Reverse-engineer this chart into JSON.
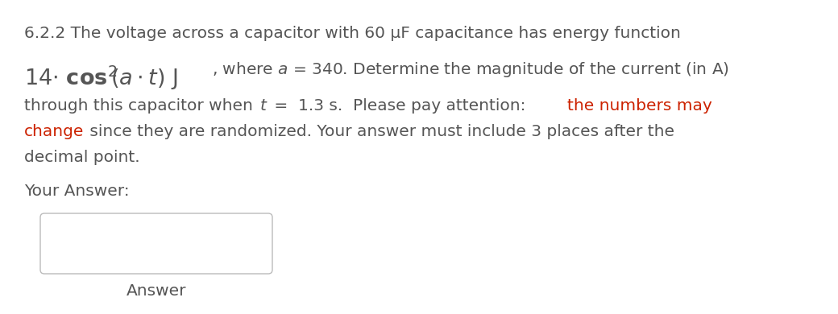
{
  "bg_color": "#ffffff",
  "text_color": "#555555",
  "red_color": "#cc2200",
  "line1": "6.2.2 The voltage across a capacitor with 60 μF capacitance has energy function",
  "line2_rest": ", where α = 340. Determine the magnitude of the current (in A)",
  "line3a": "through this capacitor when ",
  "line3b": "t",
  "line3c": " =  1.3 s.  Please pay attention: ",
  "line3d": "the numbers may",
  "line4a": "change",
  "line4b": " since they are randomized. Your answer must include 3 places after the",
  "line5": "decimal point.",
  "your_answer": "Your Answer:",
  "answer_label": "Answer",
  "fs_main": 14.5,
  "fs_math": 19.5
}
